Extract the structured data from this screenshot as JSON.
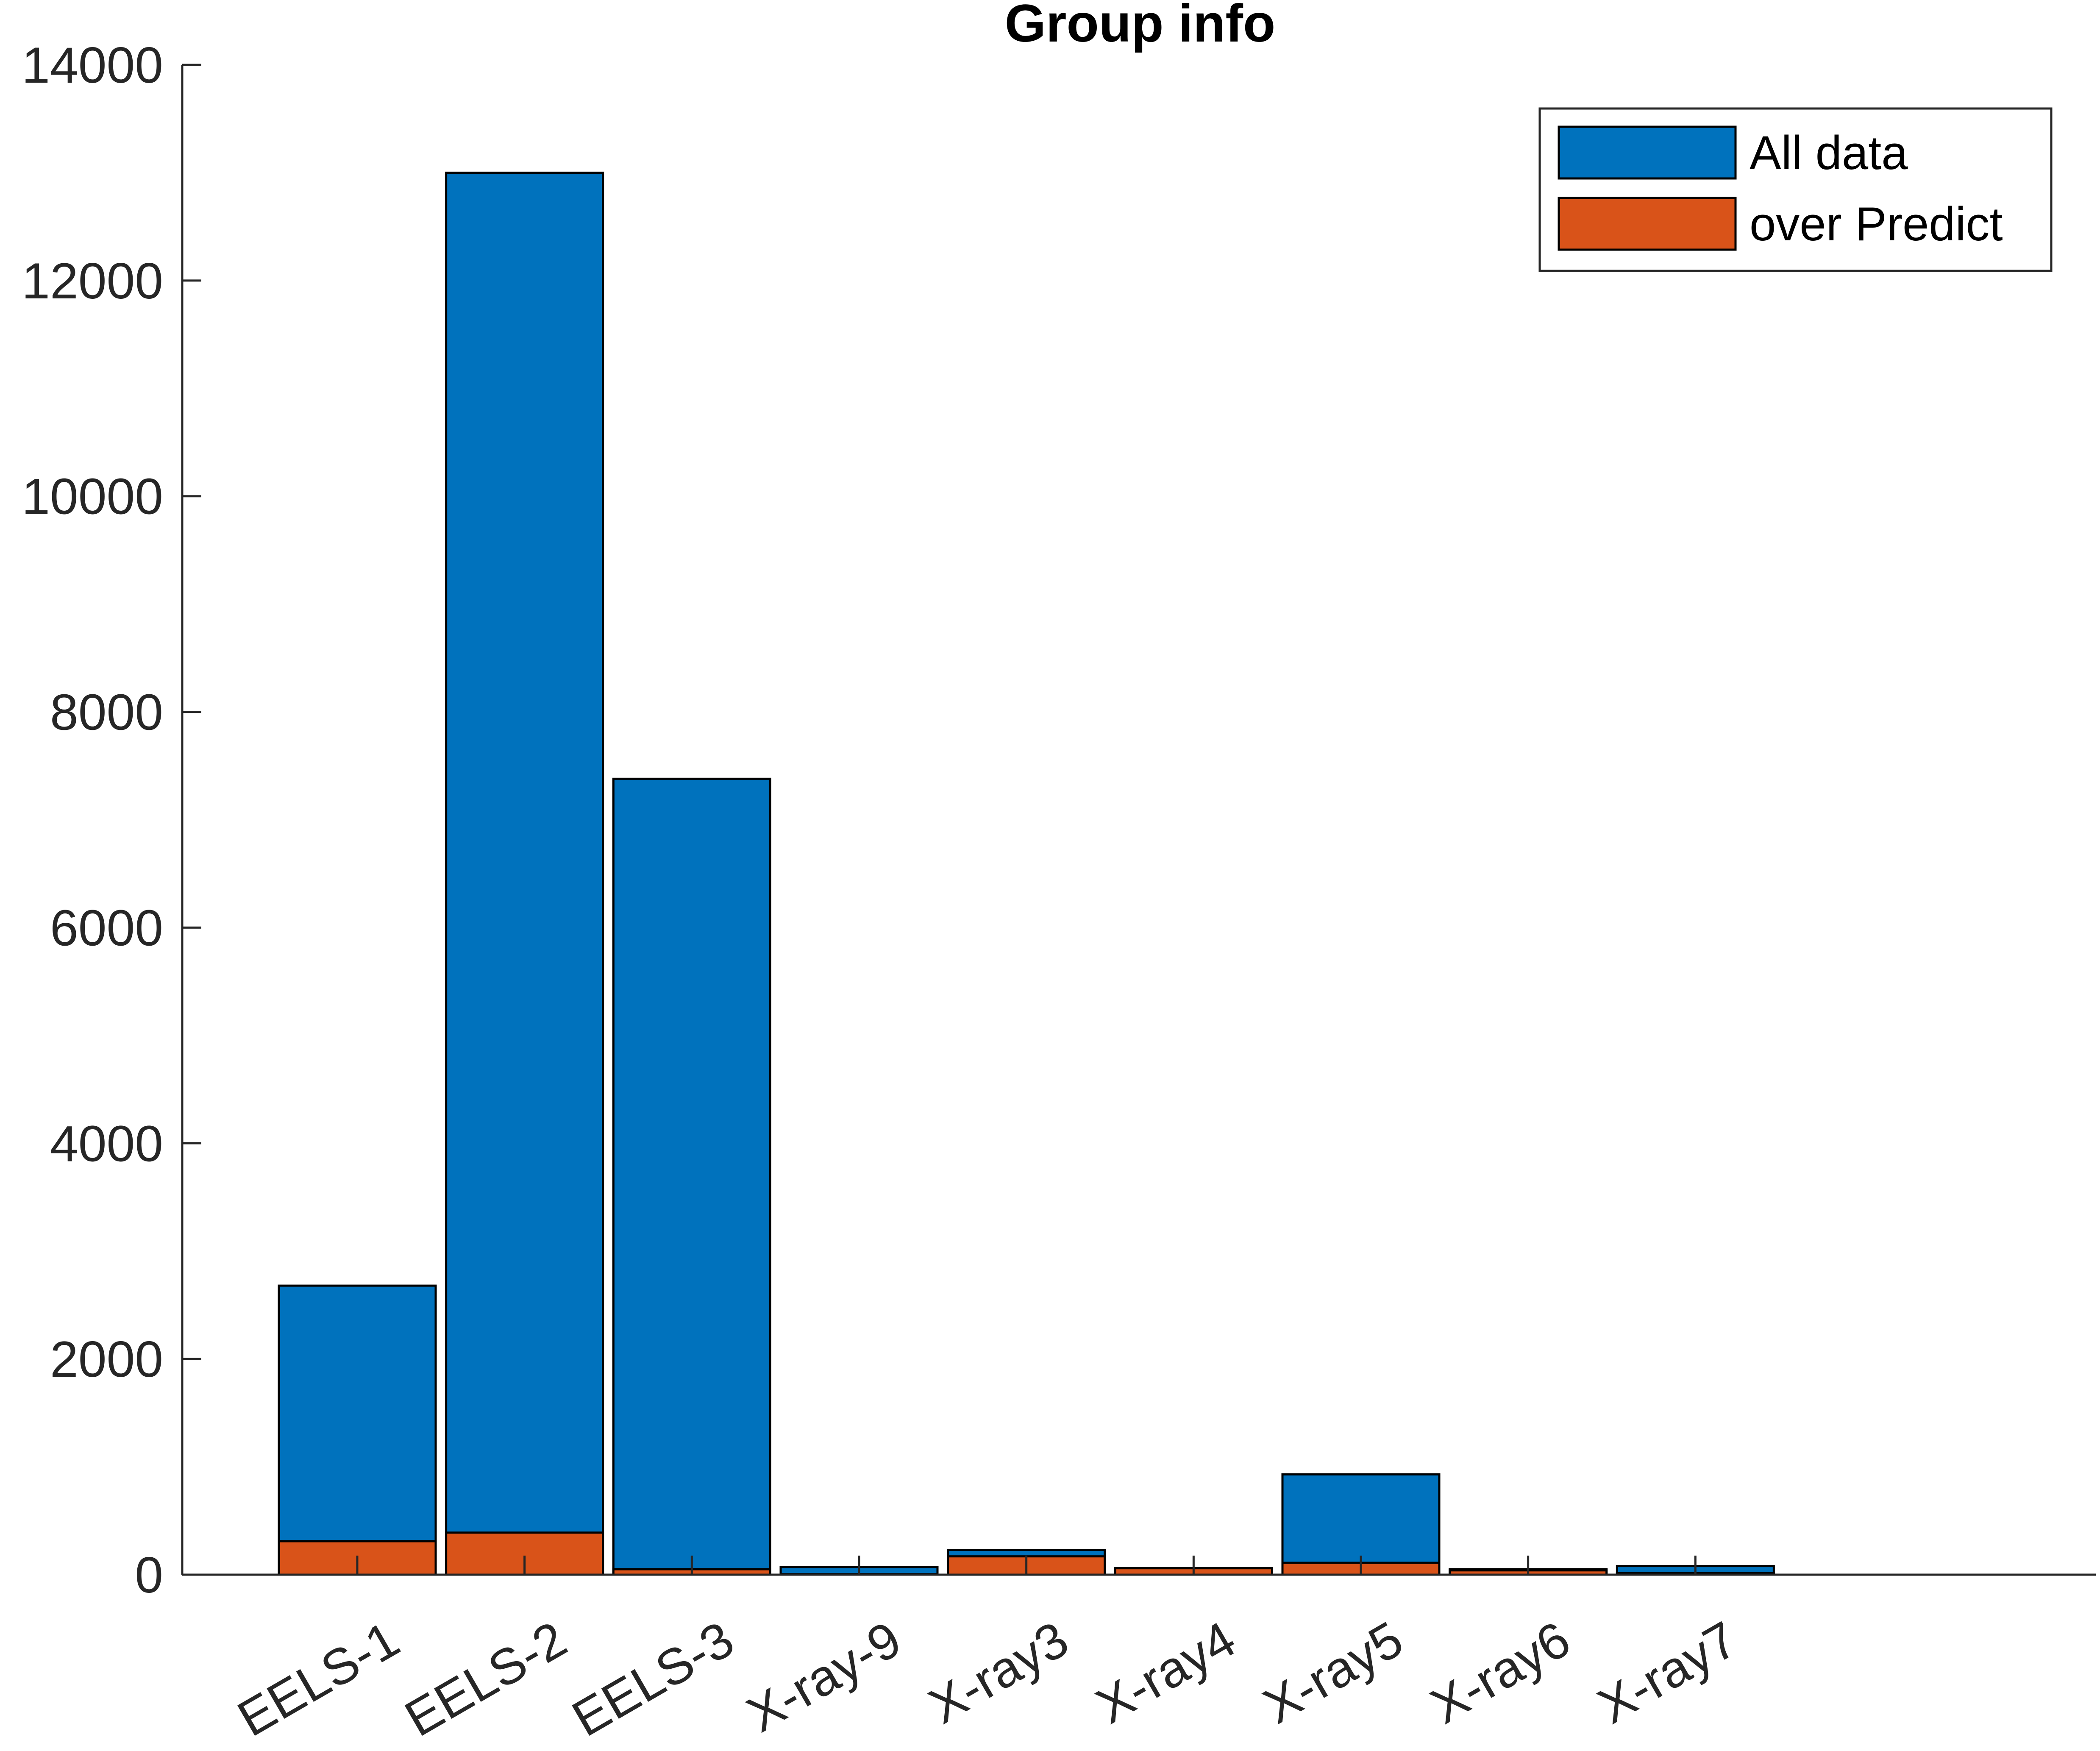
{
  "chart_data": {
    "type": "bar",
    "title": "Group info",
    "xlabel": "",
    "ylabel": "",
    "ylim": [
      0,
      14000
    ],
    "yticks": [
      0,
      2000,
      4000,
      6000,
      8000,
      10000,
      12000,
      14000
    ],
    "ytick_labels": [
      "0",
      "2000",
      "4000",
      "6000",
      "8000",
      "10000",
      "12000",
      "14000"
    ],
    "categories": [
      "EELS-1",
      "EELS-2",
      "EELS-3",
      "X-ray-9",
      "X-ray3",
      "X-ray4",
      "X-ray5",
      "X-ray6",
      "X-ray7"
    ],
    "series": [
      {
        "name": "All data",
        "color": "#0072BD",
        "values": [
          2680,
          13000,
          7380,
          70,
          230,
          60,
          930,
          50,
          80
        ]
      },
      {
        "name": "over Predict",
        "color": "#D95319",
        "values": [
          310,
          390,
          50,
          5,
          170,
          60,
          110,
          40,
          15
        ]
      }
    ],
    "legend_position": "top-right",
    "grid": false,
    "overlay": true
  }
}
